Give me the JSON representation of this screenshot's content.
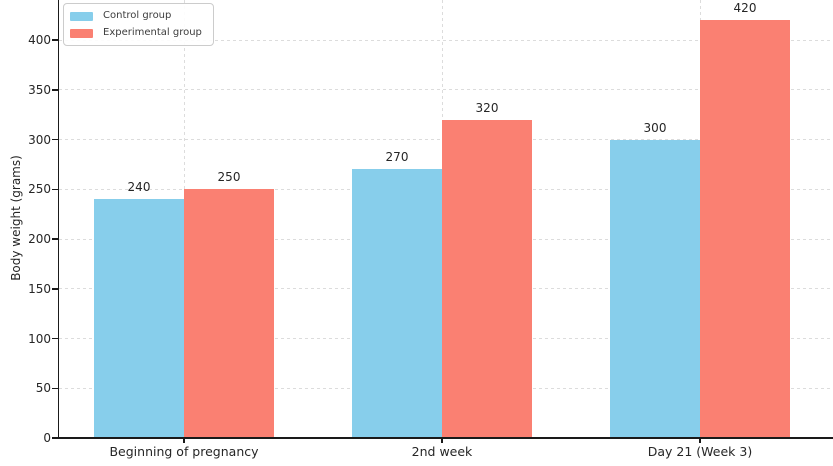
{
  "chart_data": {
    "type": "bar",
    "title": "",
    "xlabel": "",
    "ylabel": "Body weight (grams)",
    "categories": [
      "Beginning of pregnancy",
      "2nd week",
      "Day 21 (Week 3)"
    ],
    "series": [
      {
        "name": "Control group",
        "color": "#87CEEB",
        "values": [
          240,
          270,
          300
        ]
      },
      {
        "name": "Experimental group",
        "color": "#FA8072",
        "values": [
          250,
          320,
          420
        ]
      }
    ],
    "value_labels": [
      "240",
      "250",
      "270",
      "320",
      "300",
      "420"
    ],
    "yticks": [
      0,
      50,
      100,
      150,
      200,
      250,
      300,
      350,
      400
    ],
    "ylim": [
      0,
      440
    ],
    "grid": true,
    "grid_style": "dashed",
    "legend_position": "upper-left"
  },
  "colors": {
    "control_bar": "#87CEEB",
    "experimental_bar": "#FA8072",
    "grid_line": "#dcdcdc",
    "axis_line": "#1a1a1a",
    "text": "#262626",
    "legend_border": "#cccccc",
    "background": "#ffffff"
  }
}
